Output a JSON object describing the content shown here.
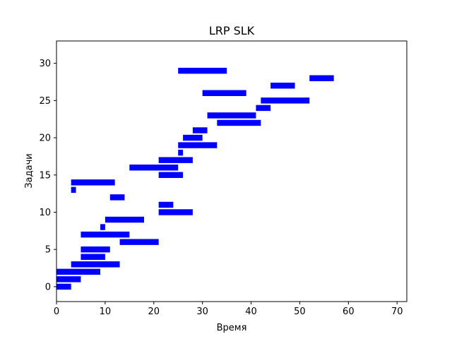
{
  "chart_data": {
    "type": "bar",
    "orientation": "horizontal-interval",
    "title": "LRP SLK",
    "xlabel": "Время",
    "ylabel": "Задачи",
    "xlim": [
      0,
      72
    ],
    "ylim": [
      -2,
      33
    ],
    "xticks": [
      0,
      10,
      20,
      30,
      40,
      50,
      60,
      70
    ],
    "yticks": [
      0,
      5,
      10,
      15,
      20,
      25,
      30
    ],
    "bar_color": "#0000ff",
    "grid": false,
    "tasks": [
      {
        "task": 1,
        "start": 0,
        "end": 3
      },
      {
        "task": 2,
        "start": 0,
        "end": 5
      },
      {
        "task": 3,
        "start": 0,
        "end": 9
      },
      {
        "task": 4,
        "start": 3,
        "end": 13
      },
      {
        "task": 5,
        "start": 5,
        "end": 10
      },
      {
        "task": 6,
        "start": 5,
        "end": 11
      },
      {
        "task": 7,
        "start": 13,
        "end": 21
      },
      {
        "task": 8,
        "start": 5,
        "end": 15
      },
      {
        "task": 9,
        "start": 9,
        "end": 10
      },
      {
        "task": 10,
        "start": 10,
        "end": 18
      },
      {
        "task": 11,
        "start": 21,
        "end": 28
      },
      {
        "task": 12,
        "start": 21,
        "end": 24
      },
      {
        "task": 13,
        "start": 11,
        "end": 14
      },
      {
        "task": 14,
        "start": 3,
        "end": 4
      },
      {
        "task": 15,
        "start": 3,
        "end": 12
      },
      {
        "task": 16,
        "start": 21,
        "end": 26
      },
      {
        "task": 17,
        "start": 15,
        "end": 25
      },
      {
        "task": 18,
        "start": 21,
        "end": 28
      },
      {
        "task": 19,
        "start": 25,
        "end": 26
      },
      {
        "task": 20,
        "start": 25,
        "end": 33
      },
      {
        "task": 21,
        "start": 26,
        "end": 30
      },
      {
        "task": 22,
        "start": 28,
        "end": 31
      },
      {
        "task": 23,
        "start": 33,
        "end": 42
      },
      {
        "task": 24,
        "start": 31,
        "end": 41
      },
      {
        "task": 25,
        "start": 41,
        "end": 44
      },
      {
        "task": 26,
        "start": 42,
        "end": 52
      },
      {
        "task": 27,
        "start": 30,
        "end": 39
      },
      {
        "task": 28,
        "start": 44,
        "end": 49
      },
      {
        "task": 29,
        "start": 52,
        "end": 57
      },
      {
        "task": 30,
        "start": 25,
        "end": 35
      }
    ]
  }
}
